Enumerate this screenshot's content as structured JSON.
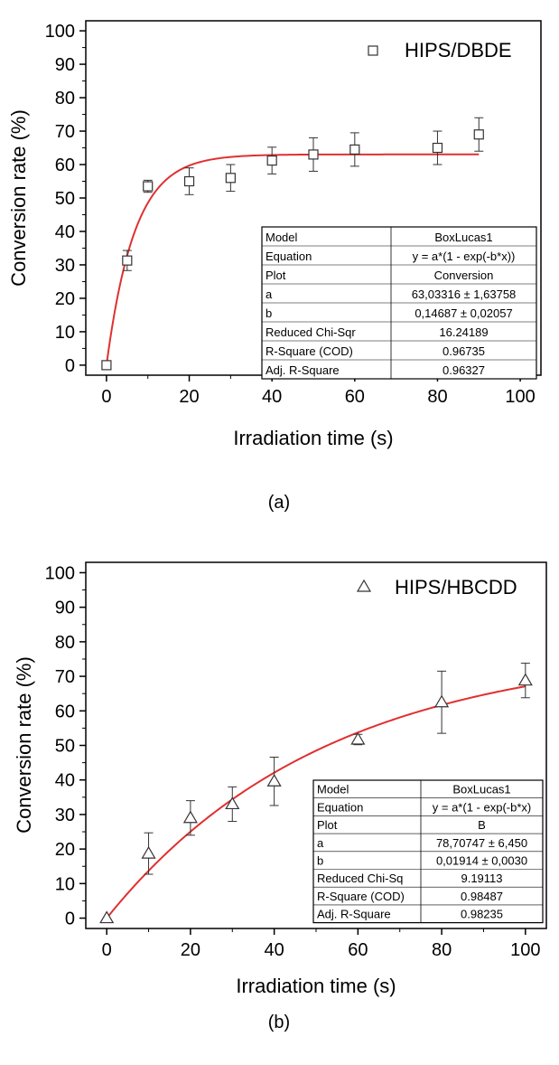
{
  "chart_data": [
    {
      "type": "scatter",
      "panel_label": "(a)",
      "xlabel": "Irradiation time (s)",
      "ylabel": "Conversion rate (%)",
      "xlim": [
        0,
        100
      ],
      "ylim": [
        0,
        100
      ],
      "xticks": [
        "0",
        "20",
        "40",
        "60",
        "80",
        "100"
      ],
      "yticks": [
        "0",
        "10",
        "20",
        "30",
        "40",
        "50",
        "60",
        "70",
        "80",
        "90",
        "100"
      ],
      "legend_position": "top-right",
      "marker": "square",
      "fit_color": "#e03030",
      "series": [
        {
          "name": "HIPS/DBDE",
          "x": [
            0,
            5,
            10,
            20,
            30,
            40,
            50,
            60,
            80,
            90
          ],
          "y": [
            0,
            31.3,
            53.5,
            55,
            56,
            61.2,
            63,
            64.5,
            65,
            69
          ],
          "err": [
            0,
            3,
            1.8,
            4,
            4,
            4,
            5,
            5,
            5,
            5
          ]
        }
      ],
      "fit": {
        "model": "BoxLucas1",
        "a": 63.03316,
        "b": 0.14687,
        "x_end": 90
      },
      "fit_table": [
        [
          "Model",
          "BoxLucas1"
        ],
        [
          "Equation",
          "y = a*(1 - exp(-b*x))"
        ],
        [
          "Plot",
          "Conversion"
        ],
        [
          "a",
          "63,03316 ± 1,63758"
        ],
        [
          "b",
          "0,14687 ± 0,02057"
        ],
        [
          "Reduced Chi-Sqr",
          "16.24189"
        ],
        [
          "R-Square (COD)",
          "0.96735"
        ],
        [
          "Adj. R-Square",
          "0.96327"
        ]
      ]
    },
    {
      "type": "scatter",
      "panel_label": "(b)",
      "xlabel": "Irradiation time (s)",
      "ylabel": "Conversion rate (%)",
      "xlim": [
        0,
        100
      ],
      "ylim": [
        0,
        100
      ],
      "xticks": [
        "0",
        "20",
        "40",
        "60",
        "80",
        "100"
      ],
      "yticks": [
        "0",
        "10",
        "20",
        "30",
        "40",
        "50",
        "60",
        "70",
        "80",
        "90",
        "100"
      ],
      "legend_position": "top-right",
      "marker": "triangle",
      "fit_color": "#e03030",
      "series": [
        {
          "name": "HIPS/HBCDD",
          "x": [
            0,
            10,
            20,
            30,
            40,
            60,
            80,
            100
          ],
          "y": [
            0,
            18.7,
            29,
            33,
            39.6,
            51.7,
            62.5,
            68.8
          ],
          "err": [
            0,
            6,
            5,
            5,
            7,
            1.5,
            9,
            5
          ]
        }
      ],
      "fit": {
        "model": "BoxLucas1",
        "a": 78.70747,
        "b": 0.01914,
        "x_end": 100
      },
      "fit_table": [
        [
          "Model",
          "BoxLucas1"
        ],
        [
          "Equation",
          "y = a*(1 - exp(-b*x)"
        ],
        [
          "Plot",
          "B"
        ],
        [
          "a",
          "78,70747 ± 6,450"
        ],
        [
          "b",
          "0,01914 ± 0,0030"
        ],
        [
          "Reduced Chi-Sq",
          "9.19113"
        ],
        [
          "R-Square (COD)",
          "0.98487"
        ],
        [
          "Adj. R-Square",
          "0.98235"
        ]
      ]
    }
  ]
}
